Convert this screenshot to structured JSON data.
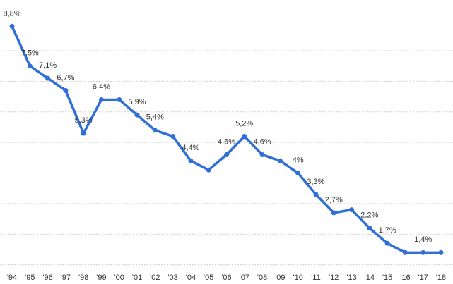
{
  "chart_data": {
    "type": "line",
    "categories": [
      "'94",
      "'95",
      "'96",
      "'97",
      "'98",
      "'99",
      "'00",
      "'01",
      "'02",
      "'03",
      "'04",
      "'05",
      "'06",
      "'07",
      "'08",
      "'09",
      "'10",
      "'11",
      "'12",
      "'13",
      "'14",
      "'15",
      "'16",
      "'17",
      "'18"
    ],
    "series": [
      {
        "color": "#2f6fd6",
        "values": [
          8.8,
          7.5,
          7.1,
          6.7,
          5.3,
          6.4,
          6.4,
          5.9,
          5.4,
          5.2,
          4.4,
          4.1,
          4.6,
          5.2,
          4.6,
          4.4,
          4,
          3.3,
          2.7,
          2.8,
          2.2,
          1.7,
          1.4,
          1.4,
          1.4
        ],
        "value_labels": [
          "8,8%",
          "7,5%",
          "7,1%",
          "6,7%",
          "5,3%",
          "6,4%",
          null,
          "5,9%",
          "5,4%",
          null,
          "4,4%",
          null,
          "4,6%",
          "5,2%",
          "4,6%",
          null,
          "4%",
          "3,3%",
          "2,7%",
          null,
          "2,2%",
          "1,7%",
          null,
          "1,4%",
          null
        ]
      }
    ],
    "ylim": [
      0.9,
      9.2
    ],
    "yticks": [
      1,
      2,
      3,
      4,
      5,
      6,
      7,
      8,
      9
    ],
    "grid": true
  }
}
